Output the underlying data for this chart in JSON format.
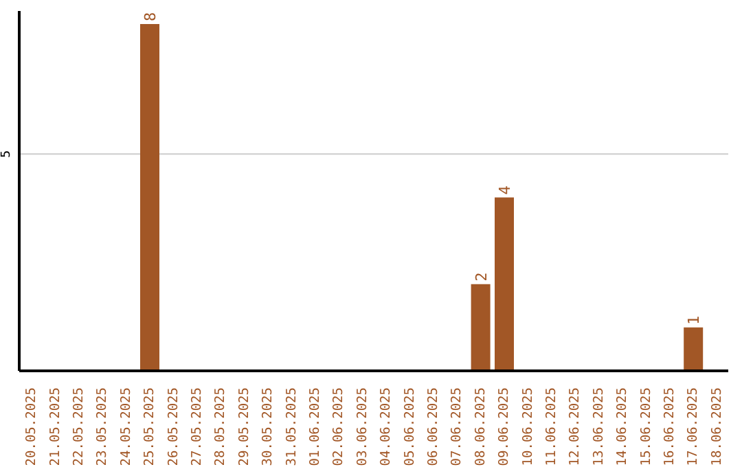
{
  "chart_data": {
    "type": "bar",
    "categories": [
      "20.05.2025",
      "21.05.2025",
      "22.05.2025",
      "23.05.2025",
      "24.05.2025",
      "25.05.2025",
      "26.05.2025",
      "27.05.2025",
      "28.05.2025",
      "29.05.2025",
      "30.05.2025",
      "31.05.2025",
      "01.06.2025",
      "02.06.2025",
      "03.06.2025",
      "04.06.2025",
      "05.06.2025",
      "06.06.2025",
      "07.06.2025",
      "08.06.2025",
      "09.06.2025",
      "10.06.2025",
      "11.06.2025",
      "12.06.2025",
      "13.06.2025",
      "14.06.2025",
      "15.06.2025",
      "16.06.2025",
      "17.06.2025",
      "18.06.2025"
    ],
    "values": [
      0,
      0,
      0,
      0,
      0,
      8,
      0,
      0,
      0,
      0,
      0,
      0,
      0,
      0,
      0,
      0,
      0,
      0,
      0,
      2,
      4,
      0,
      0,
      0,
      0,
      0,
      0,
      0,
      1,
      0
    ],
    "value_labels": [
      null,
      null,
      null,
      null,
      null,
      "8",
      null,
      null,
      null,
      null,
      null,
      null,
      null,
      null,
      null,
      null,
      null,
      null,
      null,
      "2",
      "4",
      null,
      null,
      null,
      null,
      null,
      null,
      null,
      "1",
      null
    ],
    "color": "#a25726",
    "ylim": [
      0,
      8.3
    ],
    "yticks": [
      5
    ],
    "grid": "y"
  }
}
